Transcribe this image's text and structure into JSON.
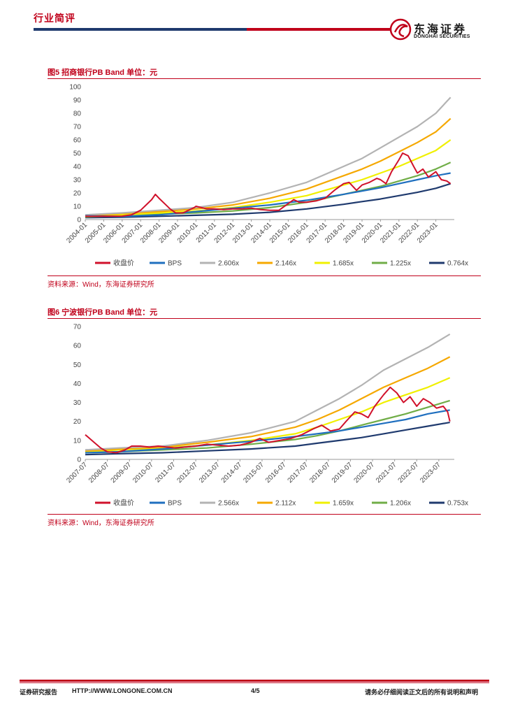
{
  "header": {
    "section_title": "行业简评",
    "logo_cn": "东海证券",
    "logo_en": "DONGHAI SECURITIES"
  },
  "colors": {
    "brand_red": "#c0001a",
    "brand_blue": "#1f3a6e"
  },
  "figures": [
    {
      "title": "图5  招商银行PB Band  单位：元",
      "source": "资料来源：Wind，东海证券研究所"
    },
    {
      "title": "图6  宁波银行PB Band  单位：元",
      "source": "资料来源：Wind，东海证券研究所"
    }
  ],
  "chart_data": [
    {
      "type": "line",
      "title": "招商银行PB Band",
      "unit": "元",
      "x_ticks": [
        "2004-01",
        "2005-01",
        "2006-01",
        "2007-01",
        "2008-01",
        "2009-01",
        "2010-01",
        "2011-01",
        "2012-01",
        "2013-01",
        "2014-01",
        "2015-01",
        "2016-01",
        "2017-01",
        "2018-01",
        "2019-01",
        "2020-01",
        "2021-01",
        "2022-01",
        "2023-01"
      ],
      "x_range": [
        2004.0,
        2024.0
      ],
      "ylim": [
        0,
        100
      ],
      "y_ticks": [
        0,
        10,
        20,
        30,
        40,
        50,
        60,
        70,
        80,
        90,
        100
      ],
      "series": [
        {
          "name": "收盘价",
          "color": "#d0112b",
          "x": [
            2004.0,
            2005.0,
            2006.0,
            2006.5,
            2007.0,
            2007.3,
            2007.6,
            2007.8,
            2008.0,
            2008.3,
            2008.6,
            2008.9,
            2009.3,
            2009.6,
            2009.9,
            2010.0,
            2010.3,
            2010.6,
            2011.0,
            2011.5,
            2012.0,
            2012.5,
            2013.0,
            2013.5,
            2014.0,
            2014.5,
            2015.0,
            2015.3,
            2015.6,
            2016.0,
            2016.5,
            2017.0,
            2017.5,
            2018.0,
            2018.3,
            2018.7,
            2019.0,
            2019.4,
            2019.8,
            2020.0,
            2020.3,
            2020.6,
            2021.0,
            2021.2,
            2021.5,
            2021.8,
            2022.0,
            2022.3,
            2022.6,
            2023.0,
            2023.3,
            2023.6,
            2023.8
          ],
          "values": [
            2.5,
            2.4,
            2.6,
            3.5,
            7,
            11,
            15,
            19,
            16,
            12,
            8,
            5,
            5,
            7,
            9,
            10,
            9,
            8,
            8,
            7.5,
            8,
            8,
            8.5,
            7.5,
            7,
            7,
            12,
            15,
            13,
            13,
            14,
            16,
            22,
            27,
            28,
            22,
            26,
            28,
            31,
            30,
            27,
            36,
            45,
            50,
            48,
            40,
            35,
            38,
            32,
            36,
            30,
            29,
            27
          ]
        },
        {
          "name": "BPS",
          "color": "#1f6fbf",
          "x": [
            2004.0,
            2006.0,
            2008.0,
            2010.0,
            2012.0,
            2014.0,
            2016.0,
            2018.0,
            2020.0,
            2021.0,
            2022.0,
            2023.0,
            2023.8
          ],
          "values": [
            2.8,
            2.3,
            3.5,
            6,
            8.5,
            11,
            14.5,
            19,
            24,
            27,
            30,
            33,
            35
          ]
        },
        {
          "name": "2.606x",
          "color": "#b3b3b3",
          "x": [
            2004.0,
            2006.0,
            2008.0,
            2010.0,
            2012.0,
            2014.0,
            2016.0,
            2018.0,
            2019.0,
            2020.0,
            2021.0,
            2022.0,
            2023.0,
            2023.8
          ],
          "values": [
            3.5,
            5,
            7,
            9,
            13,
            20,
            28,
            40,
            46,
            54,
            62,
            70,
            80,
            92
          ]
        },
        {
          "name": "2.146x",
          "color": "#f5a800",
          "x": [
            2004.0,
            2006.0,
            2008.0,
            2010.0,
            2012.0,
            2014.0,
            2016.0,
            2018.0,
            2019.0,
            2020.0,
            2021.0,
            2022.0,
            2023.0,
            2023.8
          ],
          "values": [
            3,
            4.5,
            6,
            8,
            11,
            16,
            23,
            33,
            38,
            44,
            51,
            58,
            66,
            76
          ]
        },
        {
          "name": "1.685x",
          "color": "#f0f000",
          "x": [
            2004.0,
            2006.0,
            2008.0,
            2010.0,
            2012.0,
            2014.0,
            2016.0,
            2018.0,
            2019.0,
            2020.0,
            2021.0,
            2022.0,
            2023.0,
            2023.8
          ],
          "values": [
            2.5,
            3.5,
            5,
            6.5,
            9,
            13,
            18,
            26,
            30,
            35,
            40,
            46,
            52,
            60
          ]
        },
        {
          "name": "1.225x",
          "color": "#70ad47",
          "x": [
            2004.0,
            2006.0,
            2008.0,
            2010.0,
            2012.0,
            2014.0,
            2016.0,
            2018.0,
            2019.0,
            2020.0,
            2021.0,
            2022.0,
            2023.0,
            2023.8
          ],
          "values": [
            2,
            2.8,
            4,
            5,
            6.5,
            9,
            13,
            19,
            22,
            25,
            29,
            33,
            38,
            43
          ]
        },
        {
          "name": "0.764x",
          "color": "#1f3a6e",
          "x": [
            2004.0,
            2006.0,
            2008.0,
            2010.0,
            2012.0,
            2014.0,
            2016.0,
            2018.0,
            2019.0,
            2020.0,
            2021.0,
            2022.0,
            2023.0,
            2023.8
          ],
          "values": [
            1.5,
            1.8,
            2.5,
            3.2,
            4,
            5.5,
            8,
            11.5,
            13.5,
            15.5,
            18,
            20.5,
            23.5,
            27
          ]
        }
      ]
    },
    {
      "type": "line",
      "title": "宁波银行PB Band",
      "unit": "元",
      "x_ticks": [
        "2007-07",
        "2008-07",
        "2009-07",
        "2010-07",
        "2011-07",
        "2012-07",
        "2013-07",
        "2014-07",
        "2015-07",
        "2016-07",
        "2017-07",
        "2018-07",
        "2019-07",
        "2020-07",
        "2021-07",
        "2022-07",
        "2023-07"
      ],
      "x_range": [
        2007.5,
        2024.2
      ],
      "ylim": [
        0,
        70
      ],
      "y_ticks": [
        0,
        10,
        20,
        30,
        40,
        50,
        60,
        70
      ],
      "series": [
        {
          "name": "收盘价",
          "color": "#d0112b",
          "x": [
            2007.5,
            2007.7,
            2007.9,
            2008.2,
            2008.5,
            2008.9,
            2009.3,
            2009.6,
            2010.0,
            2010.4,
            2010.8,
            2011.2,
            2011.6,
            2012.0,
            2012.5,
            2013.0,
            2013.5,
            2014.0,
            2014.5,
            2015.0,
            2015.4,
            2015.8,
            2016.3,
            2016.8,
            2017.3,
            2017.8,
            2018.2,
            2018.6,
            2019.0,
            2019.3,
            2019.7,
            2020.0,
            2020.3,
            2020.6,
            2021.0,
            2021.3,
            2021.6,
            2021.9,
            2022.2,
            2022.5,
            2022.8,
            2023.1,
            2023.4,
            2023.7,
            2023.9,
            2024.0
          ],
          "values": [
            13,
            11,
            9,
            6,
            4,
            3.5,
            5,
            7,
            7,
            6.5,
            7,
            6.5,
            6,
            6.5,
            7,
            8,
            7.5,
            7,
            7.5,
            9,
            11,
            9,
            10,
            11,
            13,
            16,
            18,
            15,
            16,
            20,
            25,
            24,
            22,
            28,
            34,
            38,
            35,
            30,
            33,
            28,
            32,
            30,
            27,
            28,
            25,
            20
          ]
        },
        {
          "name": "BPS",
          "color": "#1f6fbf",
          "x": [
            2007.5,
            2009.0,
            2011.0,
            2013.0,
            2015.0,
            2017.0,
            2019.0,
            2020.0,
            2021.0,
            2022.0,
            2023.0,
            2024.0
          ],
          "values": [
            3.5,
            4,
            5.5,
            7.5,
            9.5,
            12,
            15,
            17,
            19,
            21,
            24,
            26
          ]
        },
        {
          "name": "2.566x",
          "color": "#b3b3b3",
          "x": [
            2007.5,
            2009.0,
            2011.0,
            2013.0,
            2015.0,
            2017.0,
            2018.0,
            2019.0,
            2020.0,
            2021.0,
            2022.0,
            2023.0,
            2024.0
          ],
          "values": [
            5,
            6,
            7,
            10,
            14,
            20,
            26,
            32,
            39,
            47,
            53,
            59,
            66
          ]
        },
        {
          "name": "2.112x",
          "color": "#f5a800",
          "x": [
            2007.5,
            2009.0,
            2011.0,
            2013.0,
            2015.0,
            2017.0,
            2018.0,
            2019.0,
            2020.0,
            2021.0,
            2022.0,
            2023.0,
            2024.0
          ],
          "values": [
            4.5,
            5.5,
            6.5,
            9,
            12,
            17,
            21,
            26,
            32,
            38,
            43,
            48,
            54
          ]
        },
        {
          "name": "1.659x",
          "color": "#f0f000",
          "x": [
            2007.5,
            2009.0,
            2011.0,
            2013.0,
            2015.0,
            2017.0,
            2018.0,
            2019.0,
            2020.0,
            2021.0,
            2022.0,
            2023.0,
            2024.0
          ],
          "values": [
            4,
            5,
            6,
            7.5,
            10,
            13.5,
            17,
            21,
            25,
            30,
            34,
            38,
            43
          ]
        },
        {
          "name": "1.206x",
          "color": "#70ad47",
          "x": [
            2007.5,
            2009.0,
            2011.0,
            2013.0,
            2015.0,
            2017.0,
            2018.0,
            2019.0,
            2020.0,
            2021.0,
            2022.0,
            2023.0,
            2024.0
          ],
          "values": [
            3.5,
            4,
            5,
            6,
            8,
            10.5,
            12.5,
            15,
            18,
            21,
            24,
            27.5,
            31
          ]
        },
        {
          "name": "0.753x",
          "color": "#1f3a6e",
          "x": [
            2007.5,
            2009.0,
            2011.0,
            2013.0,
            2015.0,
            2017.0,
            2018.0,
            2019.0,
            2020.0,
            2021.0,
            2022.0,
            2023.0,
            2024.0
          ],
          "values": [
            2.5,
            3,
            3.5,
            4.5,
            5.5,
            7,
            8.5,
            10,
            11.5,
            13.5,
            15.5,
            17.5,
            19.5
          ]
        }
      ]
    }
  ],
  "footer": {
    "left": "证券研究报告",
    "url": "HTTP://WWW.LONGONE.COM.CN",
    "page": "4/5",
    "right": "请务必仔细阅读正文后的所有说明和声明"
  }
}
